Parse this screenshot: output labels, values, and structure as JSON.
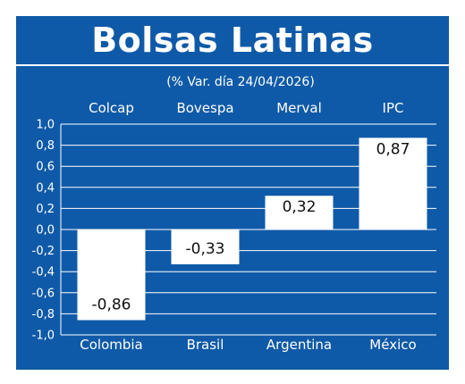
{
  "title": "Bolsas Latinas",
  "subtitle": "(% Var. día 24/04/2026)",
  "colors": {
    "background": "#0f5aa8",
    "bar": "#ffffff",
    "text": "#ffffff",
    "value_text": "#111111"
  },
  "chart_data": {
    "type": "bar",
    "title": "Bolsas Latinas",
    "subtitle": "(% Var. día 24/04/2026)",
    "indices": [
      "Colcap",
      "Bovespa",
      "Merval",
      "IPC"
    ],
    "categories": [
      "Colombia",
      "Brasil",
      "Argentina",
      "México"
    ],
    "values": [
      -0.86,
      -0.33,
      0.32,
      0.87
    ],
    "value_labels": [
      "-0,86",
      "-0,33",
      "0,32",
      "0,87"
    ],
    "ylim": [
      -1.0,
      1.0
    ],
    "yticks": [
      1.0,
      0.8,
      0.6,
      0.4,
      0.2,
      0.0,
      -0.2,
      -0.4,
      -0.6,
      -0.8,
      -1.0
    ],
    "ytick_labels": [
      "1,0",
      "0,8",
      "0,6",
      "0,4",
      "0,2",
      "0,0",
      "-0,2",
      "-0,4",
      "-0,6",
      "-0,8",
      "-1,0"
    ],
    "grid": true,
    "legend": "none"
  }
}
